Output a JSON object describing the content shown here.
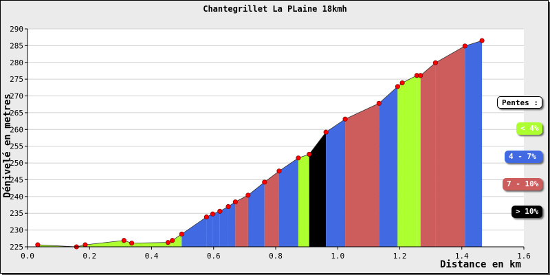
{
  "chart_data": {
    "type": "area",
    "title": "Chantegrillet La PLaine 18kmh",
    "xlabel": "Distance en km",
    "ylabel": "Dénivelé en metres",
    "xlim": [
      0,
      1.6
    ],
    "ylim": [
      225,
      290
    ],
    "xticks": [
      "0.0",
      "0.2",
      "0.4",
      "0.6",
      "0.8",
      "1.0",
      "1.2",
      "1.4",
      "1.6"
    ],
    "yticks": [
      "225",
      "230",
      "235",
      "240",
      "245",
      "250",
      "255",
      "260",
      "265",
      "270",
      "275",
      "280",
      "285",
      "290"
    ],
    "grid": "horizontal",
    "legend_position": "right",
    "points": [
      {
        "x": 0.033,
        "y": 225.6
      },
      {
        "x": 0.158,
        "y": 225.0
      },
      {
        "x": 0.186,
        "y": 225.6
      },
      {
        "x": 0.311,
        "y": 226.9
      },
      {
        "x": 0.336,
        "y": 226.1
      },
      {
        "x": 0.453,
        "y": 226.3
      },
      {
        "x": 0.467,
        "y": 226.9
      },
      {
        "x": 0.497,
        "y": 228.8
      },
      {
        "x": 0.577,
        "y": 233.9
      },
      {
        "x": 0.597,
        "y": 234.8
      },
      {
        "x": 0.62,
        "y": 235.6
      },
      {
        "x": 0.647,
        "y": 237.0
      },
      {
        "x": 0.67,
        "y": 238.4
      },
      {
        "x": 0.711,
        "y": 240.4
      },
      {
        "x": 0.764,
        "y": 244.3
      },
      {
        "x": 0.811,
        "y": 247.6
      },
      {
        "x": 0.873,
        "y": 251.5
      },
      {
        "x": 0.908,
        "y": 252.6
      },
      {
        "x": 0.962,
        "y": 259.2
      },
      {
        "x": 1.024,
        "y": 263.1
      },
      {
        "x": 1.133,
        "y": 267.8
      },
      {
        "x": 1.193,
        "y": 272.8
      },
      {
        "x": 1.208,
        "y": 273.9
      },
      {
        "x": 1.255,
        "y": 276.1
      },
      {
        "x": 1.267,
        "y": 276.1
      },
      {
        "x": 1.315,
        "y": 279.9
      },
      {
        "x": 1.41,
        "y": 284.9
      },
      {
        "x": 1.465,
        "y": 286.5
      }
    ],
    "segment_slopes": [
      "<4",
      "<4",
      "<4",
      "<4",
      "<4",
      "<4",
      "<4",
      "4-7",
      "4-7",
      "4-7",
      "4-7",
      "4-7",
      "7-10",
      "4-7",
      "7-10",
      "4-7",
      "<4",
      ">10",
      "4-7",
      "7-10",
      "4-7",
      "<4",
      "<4",
      "<4",
      "7-10",
      "7-10",
      "4-7"
    ],
    "legend": {
      "title": "Pentes :",
      "items": [
        {
          "key": "<4",
          "label": "< 4%",
          "color": "#adff2f",
          "text_color": "#ffffff"
        },
        {
          "key": "4-7",
          "label": "4 - 7%",
          "color": "#4169e1",
          "text_color": "#ffffff"
        },
        {
          "key": "7-10",
          "label": "7 - 10%",
          "color": "#cd5c5c",
          "text_color": "#ffffff"
        },
        {
          "key": ">10",
          "label": "> 10%",
          "color": "#000000",
          "text_color": "#ffffff"
        }
      ]
    },
    "marker_color": "#ff0000"
  }
}
